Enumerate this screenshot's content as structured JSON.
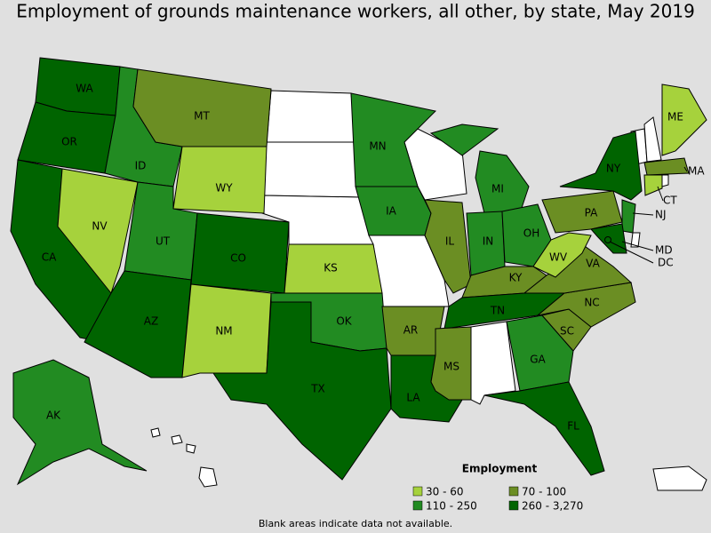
{
  "title": "Employment of grounds maintenance workers, all other, by state, May 2019",
  "legend": {
    "title": "Employment",
    "items": [
      {
        "label": "30 - 60",
        "color": "#a6d23c"
      },
      {
        "label": "70 - 100",
        "color": "#6b8e23"
      },
      {
        "label": "110 - 250",
        "color": "#228b22"
      },
      {
        "label": "260 - 3,270",
        "color": "#006400"
      }
    ]
  },
  "states": [
    {
      "label": "WA",
      "bin": 3
    },
    {
      "label": "OR",
      "bin": 3
    },
    {
      "label": "CA",
      "bin": 3
    },
    {
      "label": "NV",
      "bin": 0
    },
    {
      "label": "ID",
      "bin": 2
    },
    {
      "label": "MT",
      "bin": 1
    },
    {
      "label": "WY",
      "bin": 0
    },
    {
      "label": "UT",
      "bin": 2
    },
    {
      "label": "CO",
      "bin": 3
    },
    {
      "label": "AZ",
      "bin": 3
    },
    {
      "label": "NM",
      "bin": 0
    },
    {
      "label": "KS",
      "bin": 0
    },
    {
      "label": "OK",
      "bin": 2
    },
    {
      "label": "TX",
      "bin": 3
    },
    {
      "label": "MN",
      "bin": 2
    },
    {
      "label": "IA",
      "bin": 2
    },
    {
      "label": "AR",
      "bin": 1
    },
    {
      "label": "LA",
      "bin": 3
    },
    {
      "label": "IL",
      "bin": 1
    },
    {
      "label": "MI",
      "bin": 2
    },
    {
      "label": "IN",
      "bin": 2
    },
    {
      "label": "OH",
      "bin": 2
    },
    {
      "label": "KY",
      "bin": 1
    },
    {
      "label": "TN",
      "bin": 3
    },
    {
      "label": "MS",
      "bin": 1
    },
    {
      "label": "GA",
      "bin": 2
    },
    {
      "label": "FL",
      "bin": 3
    },
    {
      "label": "SC",
      "bin": 1
    },
    {
      "label": "NC",
      "bin": 1
    },
    {
      "label": "VA",
      "bin": 1
    },
    {
      "label": "WV",
      "bin": 0
    },
    {
      "label": "PA",
      "bin": 1
    },
    {
      "label": "NY",
      "bin": 3
    },
    {
      "label": "NJ",
      "bin": 2
    },
    {
      "label": "MD",
      "bin": 3
    },
    {
      "label": "DC",
      "bin": 3
    },
    {
      "label": "ME",
      "bin": 0
    },
    {
      "label": "MA",
      "bin": 1
    },
    {
      "label": "CT",
      "bin": 0
    },
    {
      "label": "AK",
      "bin": 2
    }
  ],
  "footnote": "Blank areas indicate data not available."
}
